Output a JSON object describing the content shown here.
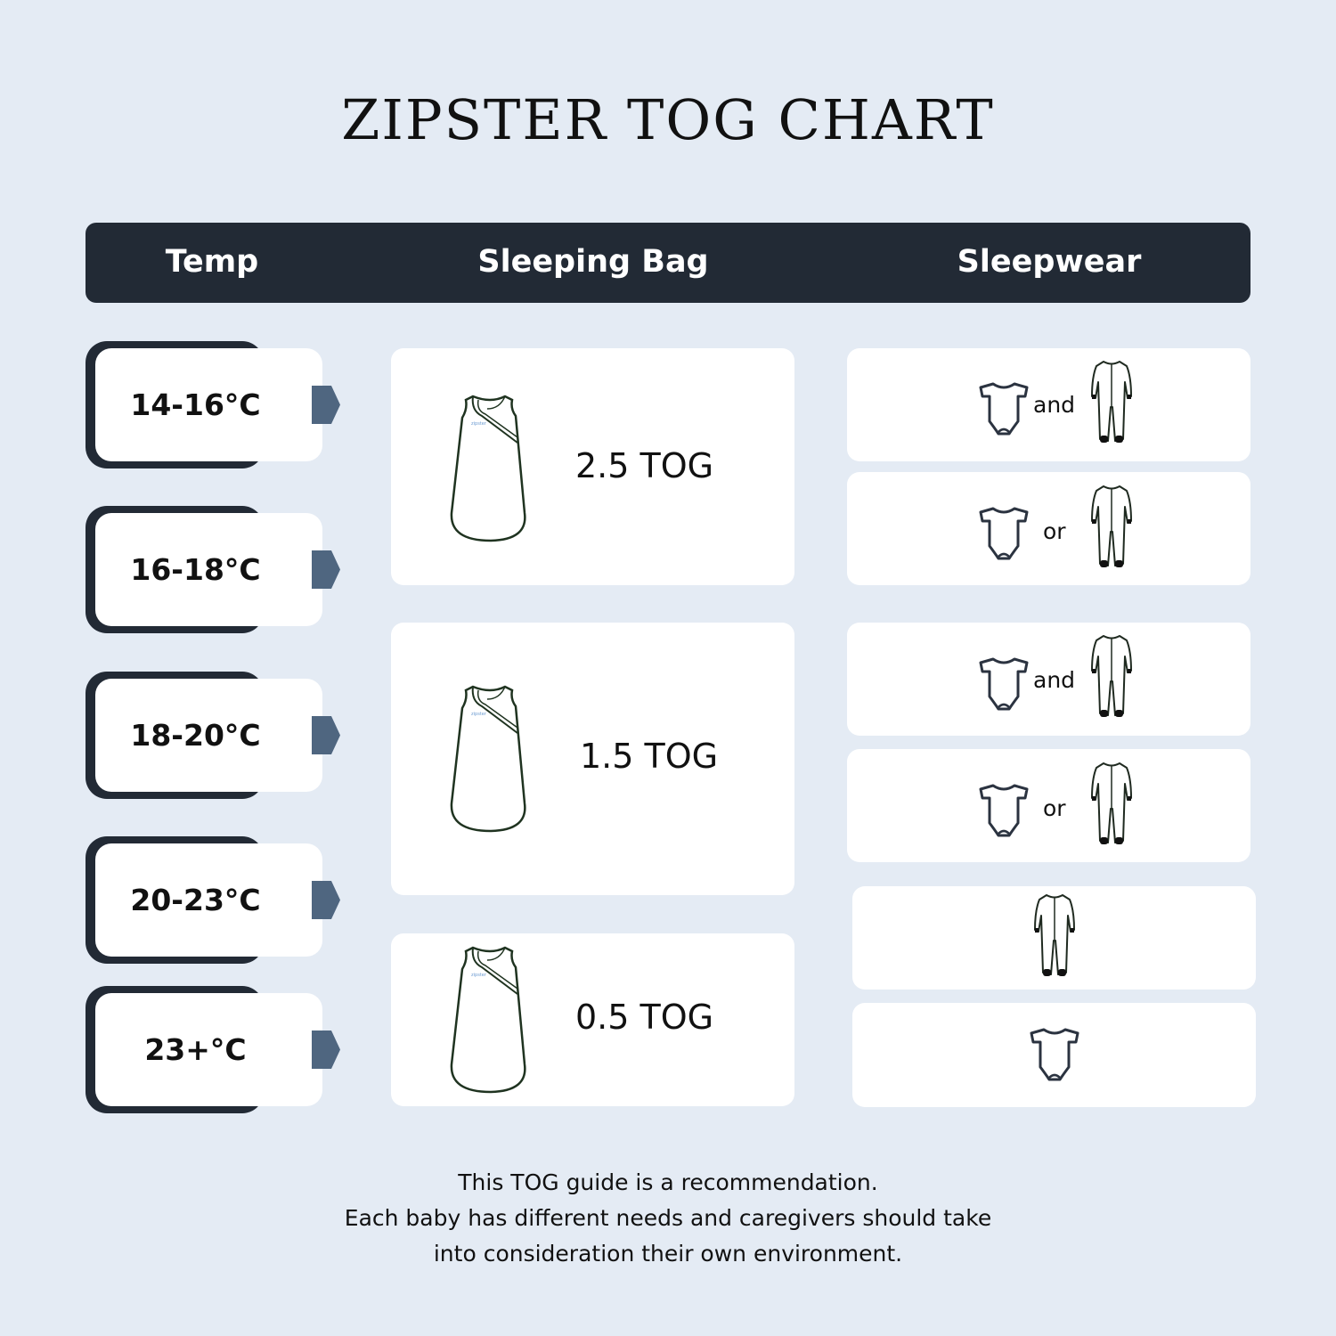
{
  "title": "ZIPSTER TOG CHART",
  "header": {
    "temp": "Temp",
    "sleeping_bag": "Sleeping Bag",
    "sleepwear": "Sleepwear"
  },
  "temps": [
    "14-16°C",
    "16-18°C",
    "18-20°C",
    "20-23°C",
    "23+°C"
  ],
  "bags": [
    "2.5 TOG",
    "1.5 TOG",
    "0.5 TOG"
  ],
  "sleepwear": [
    {
      "items": [
        "bodysuit-icon",
        "sleepsuit-icon"
      ],
      "connector": "and"
    },
    {
      "items": [
        "bodysuit-icon",
        "sleepsuit-icon"
      ],
      "connector": "or"
    },
    {
      "items": [
        "bodysuit-icon",
        "sleepsuit-icon"
      ],
      "connector": "and"
    },
    {
      "items": [
        "bodysuit-icon",
        "sleepsuit-icon"
      ],
      "connector": "or"
    },
    {
      "items": [
        "sleepsuit-icon"
      ]
    },
    {
      "items": [
        "bodysuit-icon"
      ]
    }
  ],
  "footer": [
    "This TOG guide is a recommendation.",
    "Each baby has different needs and caregivers should take",
    "into consideration their own environment."
  ],
  "colors": {
    "background": "#e4ebf4",
    "header": "#222a35",
    "arrow": "#4f6680",
    "bag_outline": "#1f3320"
  }
}
